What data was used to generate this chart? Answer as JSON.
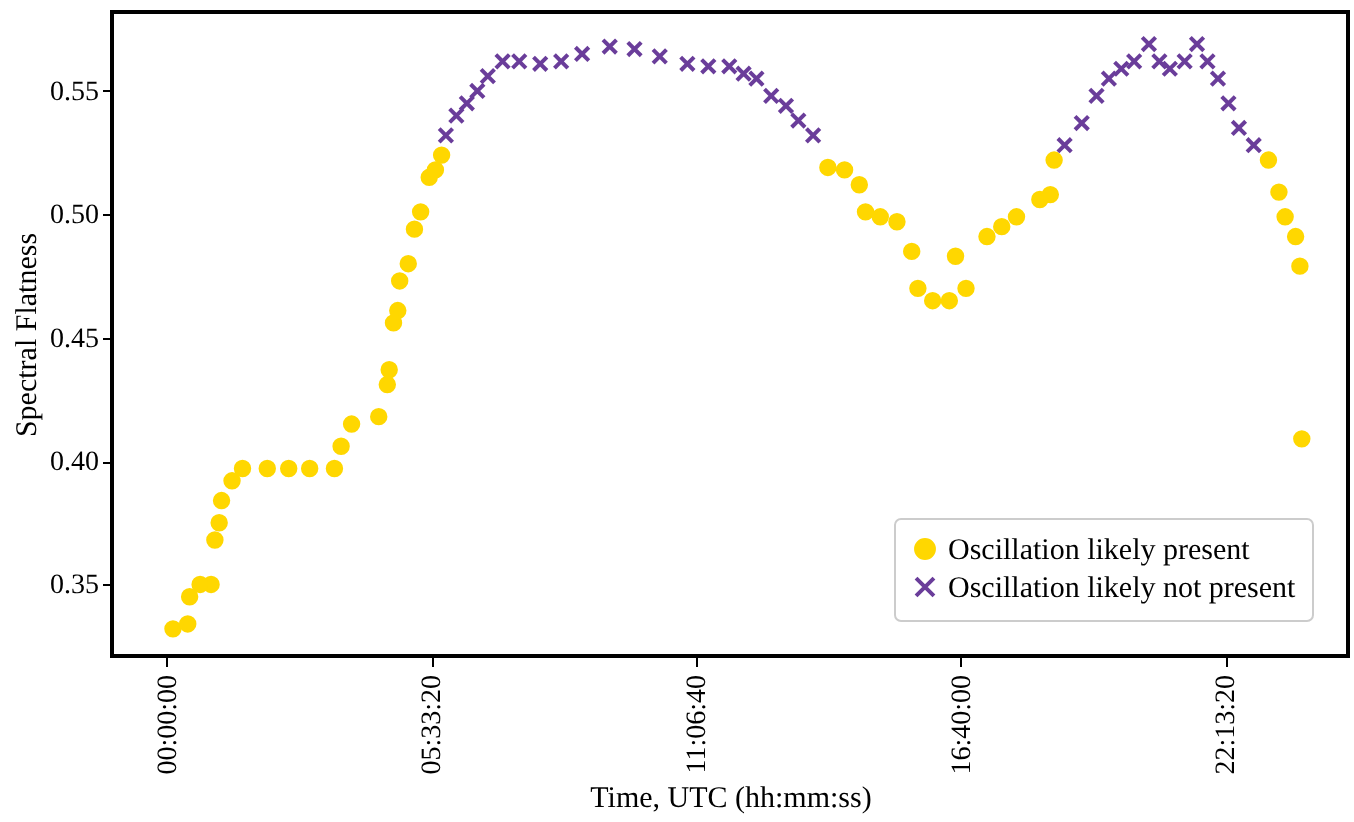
{
  "chart_data": {
    "type": "scatter",
    "xlabel": "Time, UTC (hh:mm:ss)",
    "ylabel": "Spectral Flatness",
    "xlim": [
      -1.15,
      24.8
    ],
    "ylim": [
      0.321,
      0.582
    ],
    "xticks": [
      {
        "value": 0,
        "label": "00:00:00"
      },
      {
        "value": 5.555556,
        "label": "05:33:20"
      },
      {
        "value": 11.111111,
        "label": "11:06:40"
      },
      {
        "value": 16.666667,
        "label": "16:40:00"
      },
      {
        "value": 22.222222,
        "label": "22:13:20"
      }
    ],
    "yticks": [
      0.35,
      {
        "value": 0.4,
        "label": "0.40"
      },
      0.45,
      {
        "value": 0.5,
        "label": "0.50"
      },
      0.55
    ],
    "grid": false,
    "legend": "bottom right",
    "series": [
      {
        "name": "Oscillation likely present",
        "color": "#ffd700",
        "marker": "circle",
        "x": [
          0.13,
          0.44,
          0.48,
          0.7,
          0.93,
          1.01,
          1.1,
          1.15,
          1.37,
          1.59,
          2.11,
          2.56,
          3.0,
          3.52,
          3.66,
          3.88,
          4.45,
          4.63,
          4.67,
          4.76,
          4.85,
          4.89,
          5.07,
          5.2,
          5.33,
          5.51,
          5.64,
          5.77,
          13.88,
          14.23,
          14.54,
          14.67,
          14.98,
          15.33,
          15.64,
          15.77,
          16.08,
          16.43,
          16.56,
          16.78,
          17.22,
          17.53,
          17.84,
          18.33,
          18.55,
          18.63,
          23.13,
          23.35,
          23.48,
          23.7,
          23.79,
          23.83
        ],
        "values": [
          0.332,
          0.334,
          0.345,
          0.35,
          0.35,
          0.368,
          0.375,
          0.384,
          0.392,
          0.397,
          0.397,
          0.397,
          0.397,
          0.397,
          0.406,
          0.415,
          0.418,
          0.431,
          0.437,
          0.456,
          0.461,
          0.473,
          0.48,
          0.494,
          0.501,
          0.515,
          0.518,
          0.524,
          0.519,
          0.518,
          0.512,
          0.501,
          0.499,
          0.497,
          0.485,
          0.47,
          0.465,
          0.465,
          0.483,
          0.47,
          0.491,
          0.495,
          0.499,
          0.506,
          0.508,
          0.522,
          0.522,
          0.509,
          0.499,
          0.491,
          0.479,
          0.409
        ]
      },
      {
        "name": "Oscillation likely not present",
        "color": "#6a3d9a",
        "marker": "cross",
        "x": [
          5.86,
          6.08,
          6.3,
          6.52,
          6.74,
          7.05,
          7.4,
          7.84,
          8.28,
          8.72,
          9.3,
          9.82,
          10.35,
          10.93,
          11.37,
          11.81,
          12.11,
          12.38,
          12.69,
          13.0,
          13.26,
          13.57,
          18.85,
          19.21,
          19.52,
          19.78,
          20.04,
          20.31,
          20.62,
          20.84,
          21.06,
          21.37,
          21.63,
          21.85,
          22.07,
          22.29,
          22.51,
          22.82
        ],
        "values": [
          0.532,
          0.54,
          0.545,
          0.55,
          0.556,
          0.562,
          0.562,
          0.561,
          0.562,
          0.565,
          0.568,
          0.567,
          0.564,
          0.561,
          0.56,
          0.56,
          0.557,
          0.555,
          0.548,
          0.544,
          0.538,
          0.532,
          0.528,
          0.537,
          0.548,
          0.555,
          0.559,
          0.562,
          0.569,
          0.562,
          0.559,
          0.562,
          0.569,
          0.562,
          0.555,
          0.545,
          0.535,
          0.528
        ]
      }
    ]
  }
}
